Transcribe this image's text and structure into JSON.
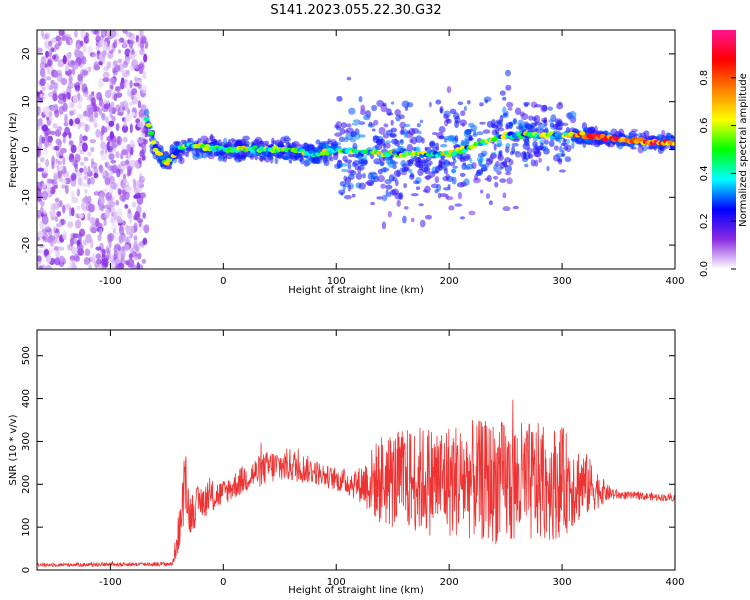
{
  "figure": {
    "title": "S141.2023.055.22.30.G32"
  },
  "chart_data": [
    {
      "type": "heatmap",
      "name": "spectrogram",
      "xlabel": "Height of straight line (km)",
      "ylabel": "Frequency (Hz)",
      "xlim": [
        -165,
        400
      ],
      "ylim": [
        -25,
        25
      ],
      "xticks": [
        -100,
        0,
        100,
        200,
        300,
        400
      ],
      "yticks": [
        -20,
        -10,
        0,
        10,
        20
      ],
      "colorbar": {
        "label": "Normalized spectral amplitude",
        "range": [
          0,
          1
        ],
        "ticks": [
          0.0,
          0.2,
          0.4,
          0.6,
          0.8
        ],
        "colormap": [
          "#ffffff",
          "#8a2be2",
          "#0000ff",
          "#00ffff",
          "#00ff00",
          "#ffff00",
          "#ff8000",
          "#ff0000",
          "#ff1493"
        ]
      },
      "ridge": {
        "x": [
          -70,
          -60,
          -50,
          -40,
          -30,
          0,
          30,
          60,
          80,
          100,
          150,
          200,
          250,
          300,
          320,
          350,
          400
        ],
        "freq": [
          8,
          0,
          -3,
          0,
          1,
          0,
          0,
          0,
          -1,
          0,
          -1,
          -1,
          3,
          3,
          3,
          2,
          1.5
        ],
        "peak_amplitude": 0.9
      },
      "noise_region_x": [
        -165,
        -68
      ],
      "grid": false
    },
    {
      "type": "line",
      "name": "snr",
      "xlabel": "Height of straight line (km)",
      "ylabel": "SNR (10 * v/v)",
      "xlim": [
        -165,
        400
      ],
      "ylim": [
        0,
        560
      ],
      "xticks": [
        -100,
        0,
        100,
        200,
        300,
        400
      ],
      "yticks": [
        0,
        100,
        200,
        300,
        400,
        500
      ],
      "color": "#ee3333",
      "envelope": {
        "x": [
          -165,
          -45,
          -38,
          -33,
          -30,
          -20,
          -10,
          0,
          20,
          40,
          60,
          80,
          100,
          120,
          140,
          180,
          220,
          260,
          300,
          320,
          340,
          350,
          400
        ],
        "center": [
          12,
          14,
          110,
          200,
          130,
          160,
          170,
          180,
          215,
          240,
          245,
          230,
          210,
          200,
          210,
          210,
          210,
          200,
          205,
          200,
          180,
          175,
          168
        ],
        "spread": [
          4,
          5,
          60,
          70,
          50,
          40,
          40,
          30,
          35,
          40,
          40,
          30,
          25,
          40,
          110,
          130,
          140,
          150,
          130,
          80,
          20,
          10,
          8
        ]
      },
      "grid": false
    }
  ]
}
